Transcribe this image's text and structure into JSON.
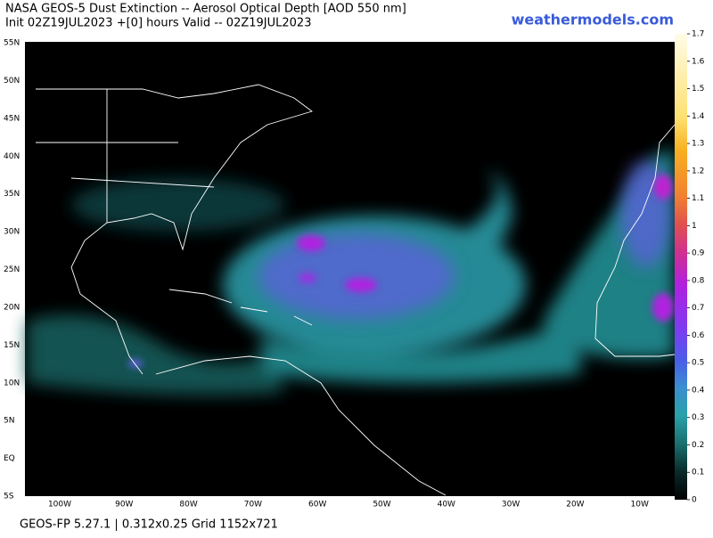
{
  "header": {
    "title_line1": "NASA GEOS-5 Dust Extinction -- Aerosol Optical Depth [AOD 550 nm]",
    "title_line2": "Init 02Z19JUL2023 +[0] hours Valid -- 02Z19JUL2023",
    "site": "weathermodels.com"
  },
  "map": {
    "lat_labels": [
      "55N",
      "50N",
      "45N",
      "40N",
      "35N",
      "30N",
      "25N",
      "20N",
      "15N",
      "10N",
      "5N",
      "EQ",
      "5S"
    ],
    "lon_labels": [
      "100W",
      "90W",
      "80W",
      "70W",
      "60W",
      "50W",
      "40W",
      "30W",
      "20W",
      "10W"
    ]
  },
  "colorbar": {
    "ticks": [
      0,
      0.1,
      0.2,
      0.3,
      0.4,
      0.5,
      0.6,
      0.7,
      0.8,
      0.9,
      1,
      1.1,
      1.2,
      1.3,
      1.4,
      1.5,
      1.6,
      1.7
    ],
    "lim": [
      0,
      1.7
    ]
  },
  "footer": {
    "text": "GEOS-FP 5.27.1 | 0.312x0.25 Grid 1152x721"
  }
}
